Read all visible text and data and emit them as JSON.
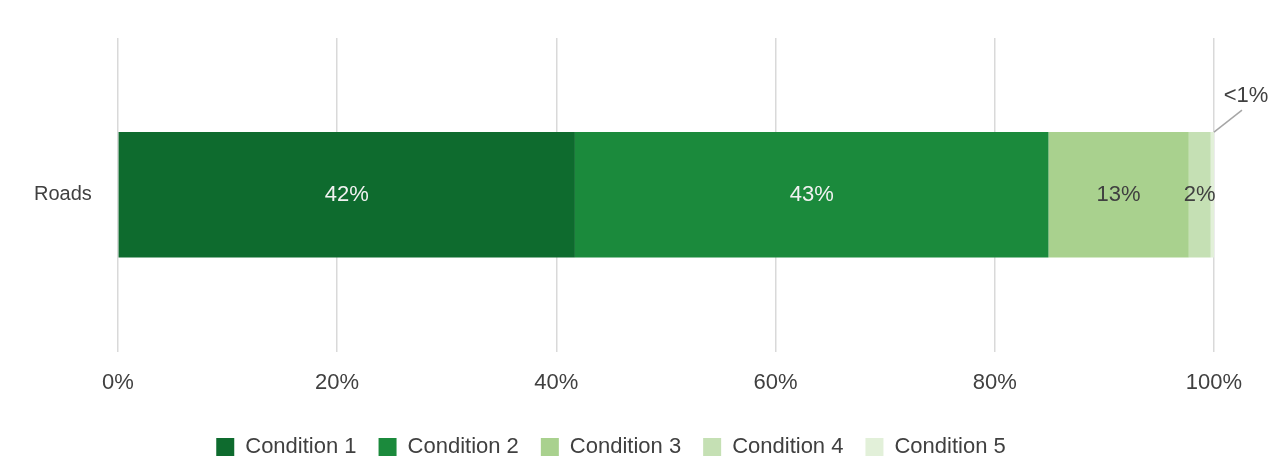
{
  "chart_data": {
    "type": "bar",
    "orientation": "horizontal",
    "stacked": true,
    "categories": [
      "Roads"
    ],
    "series": [
      {
        "name": "Condition 1",
        "color": "#0e6b2e",
        "values": [
          41.7
        ],
        "value_labels": [
          "42%"
        ]
      },
      {
        "name": "Condition 2",
        "color": "#1b8a3c",
        "values": [
          43.2
        ],
        "value_labels": [
          "43%"
        ]
      },
      {
        "name": "Condition 3",
        "color": "#a9d18e",
        "values": [
          12.8
        ],
        "value_labels": [
          "13%"
        ]
      },
      {
        "name": "Condition 4",
        "color": "#c5e0b4",
        "values": [
          2
        ],
        "value_labels": [
          "2%"
        ]
      },
      {
        "name": "Condition 5",
        "color": "#e2f0d9",
        "values": [
          0.3
        ],
        "value_labels": [
          "<1%"
        ]
      }
    ],
    "xlim": [
      0,
      100
    ],
    "xticks": [
      {
        "value": 0,
        "label": "0%"
      },
      {
        "value": 20,
        "label": "20%"
      },
      {
        "value": 40,
        "label": "40%"
      },
      {
        "value": 60,
        "label": "60%"
      },
      {
        "value": 80,
        "label": "80%"
      },
      {
        "value": 100,
        "label": "100%"
      }
    ],
    "grid": "x",
    "legend": "bottom"
  }
}
